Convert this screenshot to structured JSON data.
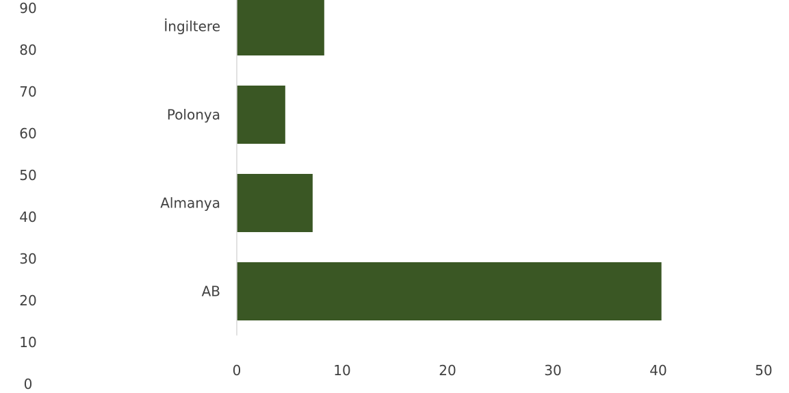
{
  "chart_data": {
    "type": "bar",
    "orientation": "horizontal",
    "categories": [
      "AB",
      "Almanya",
      "Polonya",
      "İngiltere"
    ],
    "values": [
      40.3,
      7.2,
      4.6,
      8.3
    ],
    "xlim": [
      0,
      50
    ],
    "x_ticks": [
      0,
      10,
      20,
      30,
      40,
      50
    ],
    "left_axis_ticks": [
      0,
      10,
      20,
      30,
      40,
      50,
      60,
      70,
      80,
      90
    ],
    "bar_color": "#3a5724",
    "axis_color": "#d9d9d9",
    "grid": false
  }
}
